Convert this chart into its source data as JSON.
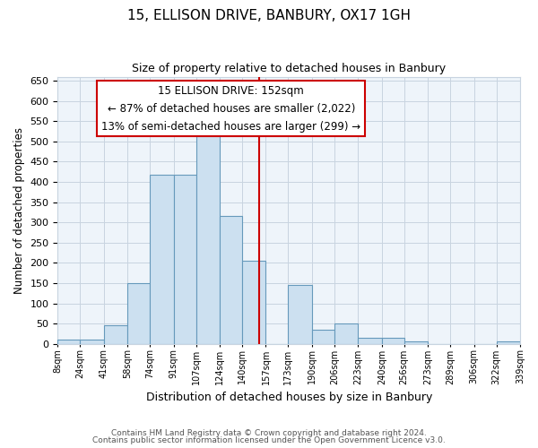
{
  "title": "15, ELLISON DRIVE, BANBURY, OX17 1GH",
  "subtitle": "Size of property relative to detached houses in Banbury",
  "xlabel": "Distribution of detached houses by size in Banbury",
  "ylabel": "Number of detached properties",
  "bar_color": "#cce0f0",
  "bar_edge_color": "#6699bb",
  "grid_color": "#c8d4e0",
  "background_color": "#eef4fa",
  "vline_color": "#cc0000",
  "vline_x": 152,
  "bin_edges": [
    8,
    24,
    41,
    58,
    74,
    91,
    107,
    124,
    140,
    157,
    173,
    190,
    206,
    223,
    240,
    256,
    273,
    289,
    306,
    322,
    339
  ],
  "bin_labels": [
    "8sqm",
    "24sqm",
    "41sqm",
    "58sqm",
    "74sqm",
    "91sqm",
    "107sqm",
    "124sqm",
    "140sqm",
    "157sqm",
    "173sqm",
    "190sqm",
    "206sqm",
    "223sqm",
    "240sqm",
    "256sqm",
    "273sqm",
    "289sqm",
    "306sqm",
    "322sqm",
    "339sqm"
  ],
  "bar_heights": [
    10,
    10,
    45,
    150,
    418,
    418,
    530,
    315,
    205,
    0,
    145,
    35,
    50,
    15,
    15,
    5,
    0,
    0,
    0,
    5
  ],
  "ylim": [
    0,
    660
  ],
  "yticks": [
    0,
    50,
    100,
    150,
    200,
    250,
    300,
    350,
    400,
    450,
    500,
    550,
    600,
    650
  ],
  "annotation_title": "15 ELLISON DRIVE: 152sqm",
  "annotation_line1": "← 87% of detached houses are smaller (2,022)",
  "annotation_line2": "13% of semi-detached houses are larger (299) →",
  "annotation_box_facecolor": "#ffffff",
  "annotation_box_edgecolor": "#cc0000",
  "footer1": "Contains HM Land Registry data © Crown copyright and database right 2024.",
  "footer2": "Contains public sector information licensed under the Open Government Licence v3.0."
}
